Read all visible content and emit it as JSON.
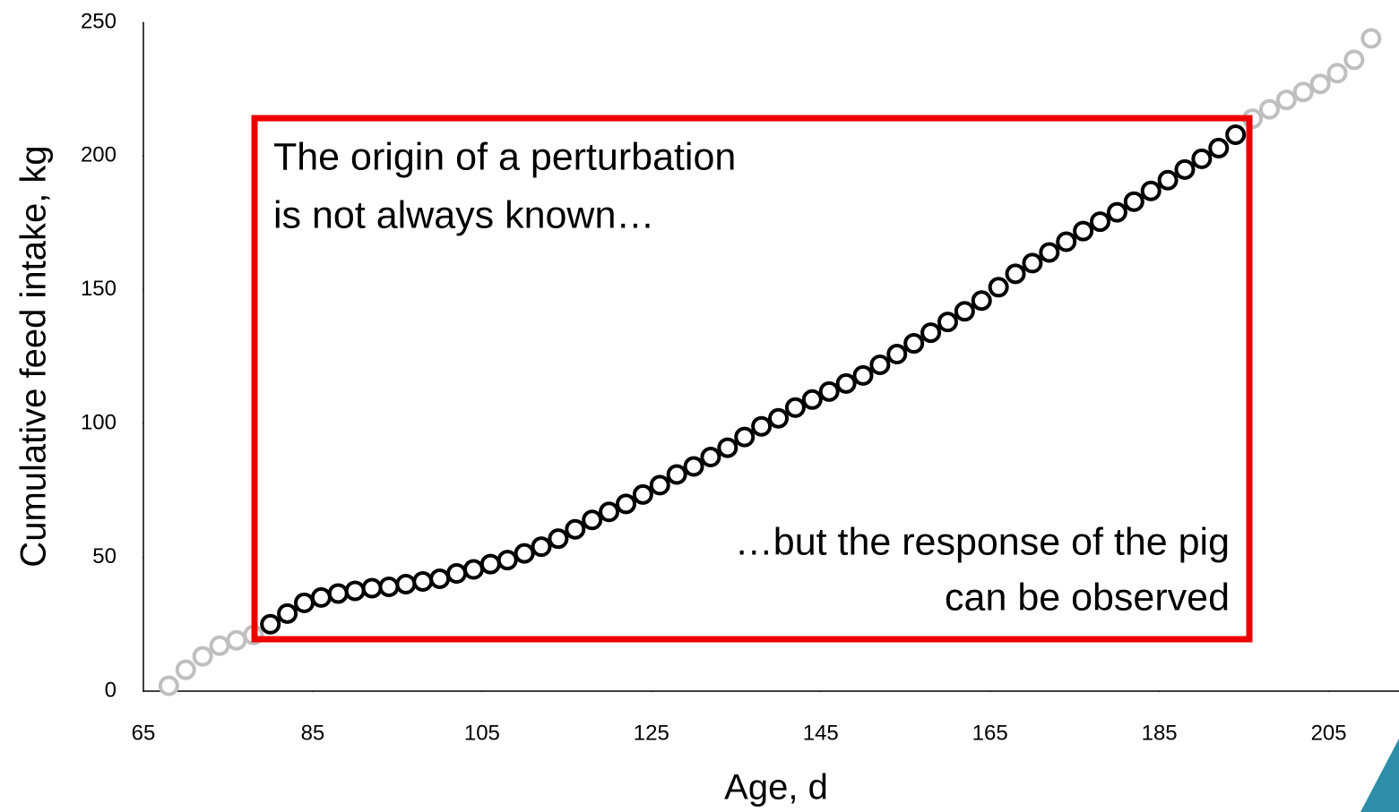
{
  "chart_data": {
    "type": "scatter",
    "xlabel": "Age, d",
    "ylabel": "Cumulative feed intake, kg",
    "xlim": [
      65,
      213.3
    ],
    "ylim": [
      0,
      250
    ],
    "xticks": [
      65,
      85,
      105,
      125,
      145,
      165,
      185,
      205
    ],
    "yticks": [
      0,
      50,
      100,
      150,
      200,
      250
    ],
    "grid": false,
    "annotations": [
      "The origin of a perturbation",
      "is not always known…",
      "…but the response of the pig",
      "can be observed"
    ],
    "series": [
      {
        "color": "#bfbfbf",
        "x": [
          68,
          70,
          72,
          74,
          76,
          78,
          196,
          198,
          200,
          202,
          204,
          206,
          208,
          210
        ],
        "values": [
          2,
          8,
          13,
          17,
          19,
          21,
          214,
          217.5,
          221,
          224,
          227,
          231,
          236,
          244
        ]
      },
      {
        "color": "#000000",
        "x": [
          80,
          82,
          84,
          86,
          88,
          90,
          92,
          94,
          96,
          98,
          100,
          102,
          104,
          106,
          108,
          110,
          112,
          114,
          116,
          118,
          120,
          122,
          124,
          126,
          128,
          130,
          132,
          134,
          136,
          138,
          140,
          142,
          144,
          146,
          148,
          150,
          152,
          154,
          156,
          158,
          160,
          162,
          164,
          166,
          168,
          170,
          172,
          174,
          176,
          178,
          180,
          182,
          184,
          186,
          188,
          190,
          192,
          194
        ],
        "values": [
          25,
          29,
          33,
          35,
          36.5,
          37.5,
          38.5,
          39,
          40,
          41,
          42,
          44,
          45.5,
          47.5,
          49,
          51.5,
          54,
          57,
          60.5,
          64,
          67,
          70,
          73.5,
          77,
          81,
          84,
          87.5,
          91,
          95,
          99,
          102,
          106,
          109,
          112,
          115,
          118,
          122,
          126,
          130,
          134,
          138,
          142,
          146,
          151,
          156,
          160,
          164,
          168,
          172,
          175.5,
          179,
          183,
          187,
          191,
          195,
          199,
          203,
          208
        ]
      }
    ]
  }
}
